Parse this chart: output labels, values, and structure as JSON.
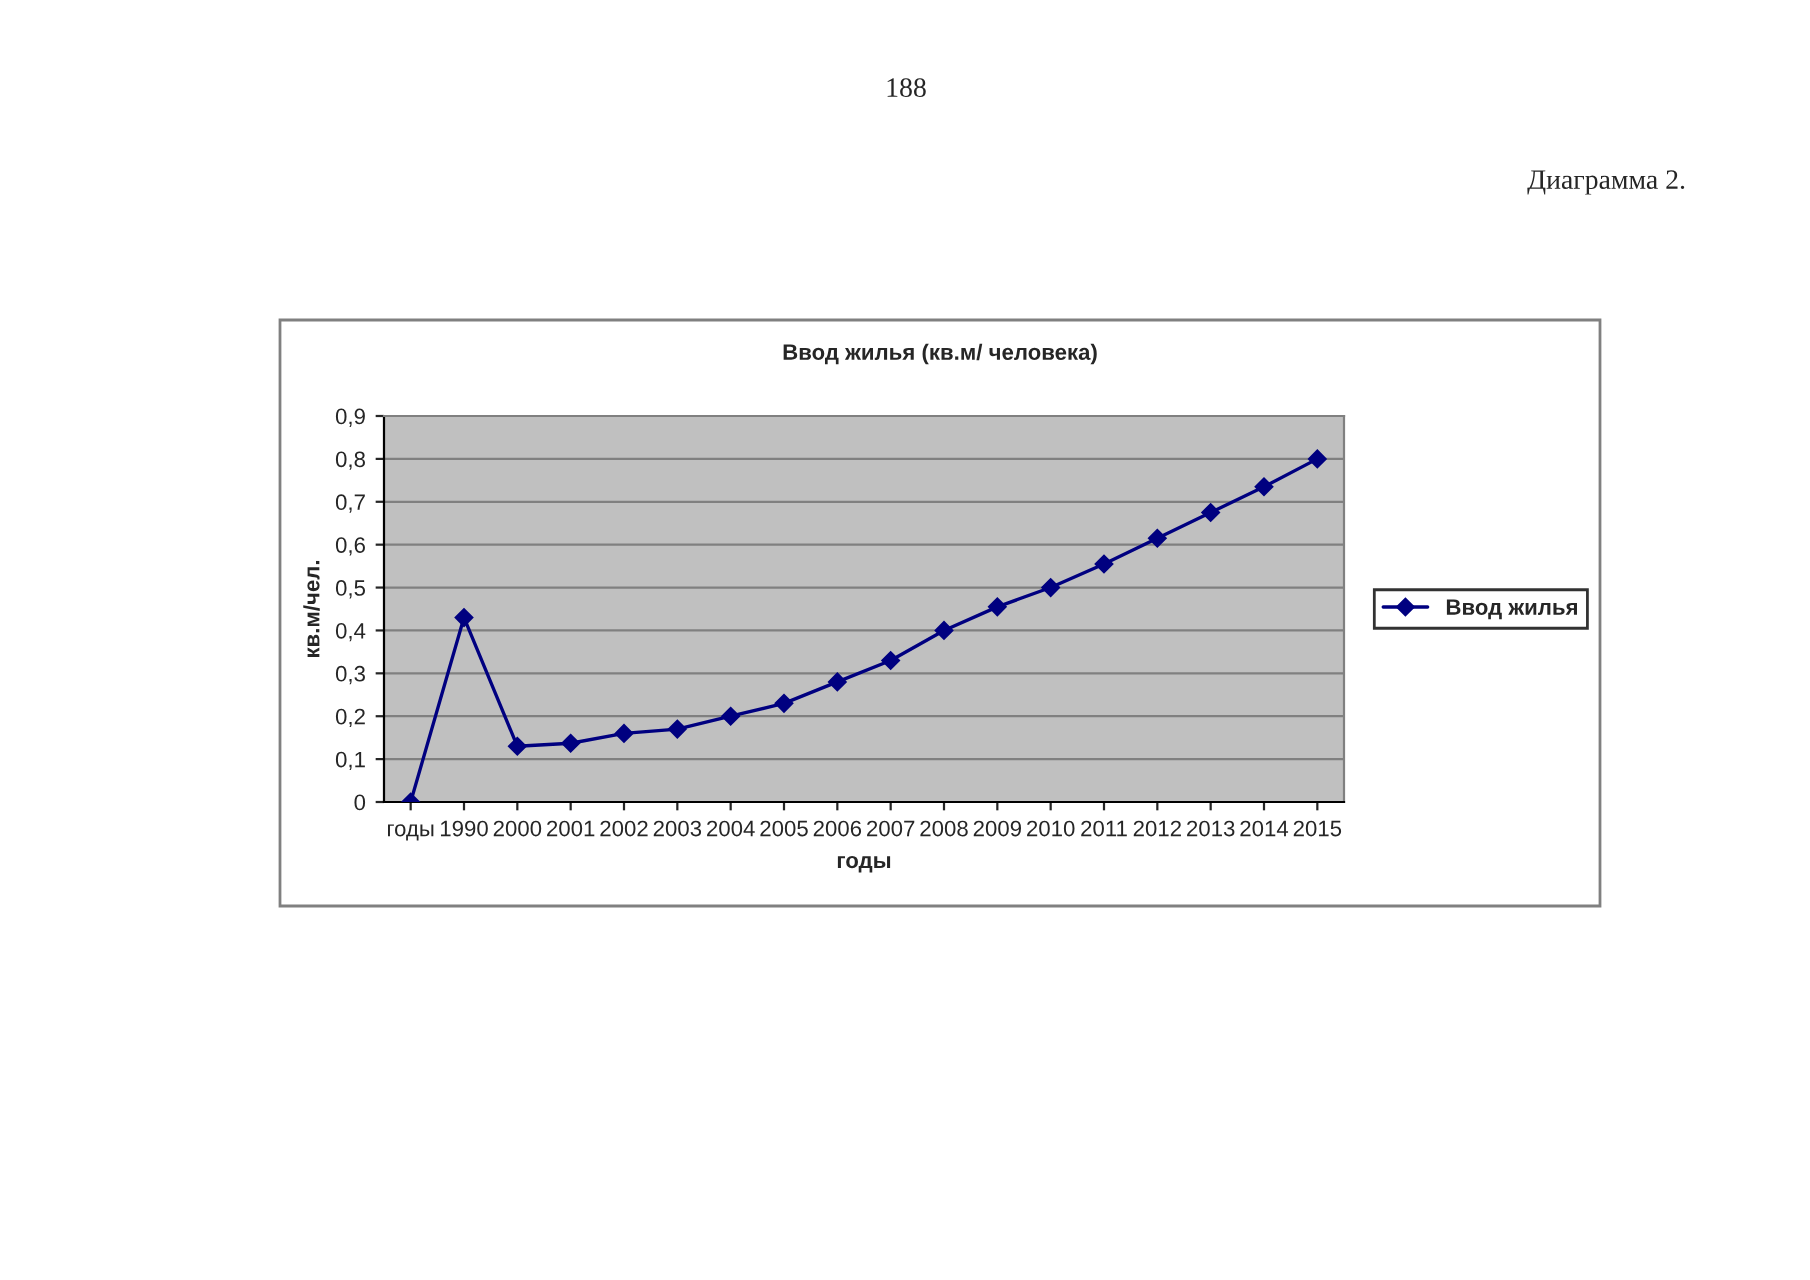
{
  "chart_data": {
    "type": "line",
    "title": "Ввод жилья (кв.м/ человека)",
    "xlabel": "годы",
    "ylabel": "кв.м/чел.",
    "categories": [
      "годы",
      "1990",
      "2000",
      "2001",
      "2002",
      "2003",
      "2004",
      "2005",
      "2006",
      "2007",
      "2008",
      "2009",
      "2010",
      "2011",
      "2012",
      "2013",
      "2014",
      "2015"
    ],
    "series": [
      {
        "name": "Ввод жилья",
        "color": "#000080",
        "values": [
          0,
          0.43,
          0.13,
          0.137,
          0.16,
          0.17,
          0.2,
          0.23,
          0.28,
          0.33,
          0.4,
          0.455,
          0.5,
          0.555,
          0.615,
          0.675,
          0.735,
          0.8
        ]
      }
    ],
    "ylim": [
      0,
      0.9
    ],
    "yticks": [
      {
        "value": 0,
        "label": "0"
      },
      {
        "value": 0.1,
        "label": "0,1"
      },
      {
        "value": 0.2,
        "label": "0,2"
      },
      {
        "value": 0.3,
        "label": "0,3"
      },
      {
        "value": 0.4,
        "label": "0,4"
      },
      {
        "value": 0.5,
        "label": "0,5"
      },
      {
        "value": 0.6,
        "label": "0,6"
      },
      {
        "value": 0.7,
        "label": "0,7"
      },
      {
        "value": 0.8,
        "label": "0,8"
      },
      {
        "value": 0.9,
        "label": "0,9"
      }
    ],
    "grid": "y",
    "legend": "right",
    "marker": "diamond",
    "line_style": "solid",
    "annotations": [
      "188",
      "Диаграмма 2."
    ]
  }
}
